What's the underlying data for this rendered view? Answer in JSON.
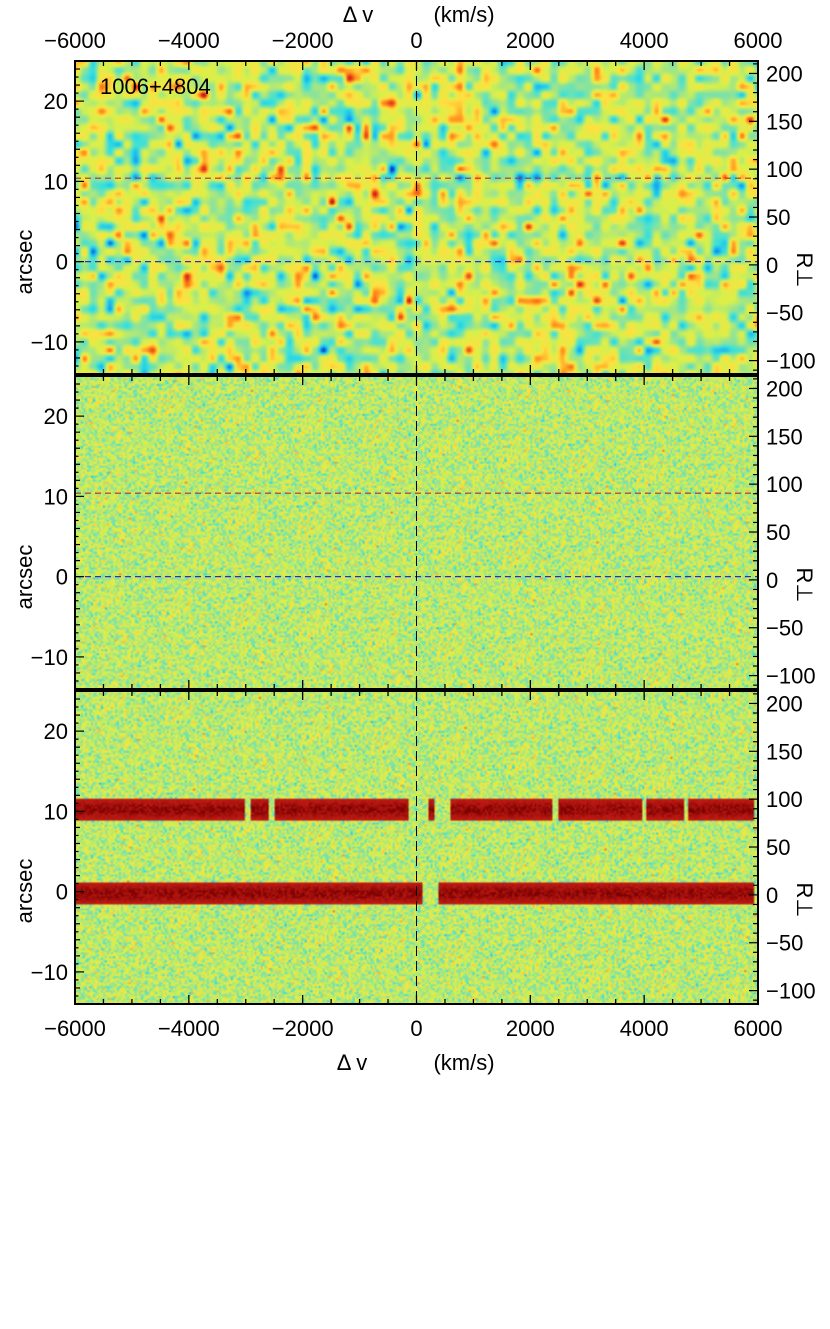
{
  "chart_data": {
    "type": "heatmap",
    "object_label": "1006+4804",
    "x_axis": {
      "label_left": "Δ v",
      "label_right": "(km/s)",
      "range": [
        -6000,
        6000
      ],
      "ticks": [
        -6000,
        -4000,
        -2000,
        0,
        2000,
        4000,
        6000
      ],
      "tick_labels": [
        "−6000",
        "−4000",
        "−2000",
        "0",
        "2000",
        "4000",
        "6000"
      ],
      "shown": [
        "top",
        "bottom"
      ]
    },
    "y_axis_left": {
      "label": "arcsec",
      "range": [
        -14,
        25
      ],
      "ticks": [
        -10,
        0,
        10,
        20
      ],
      "tick_labels": [
        "−10",
        "0",
        "10",
        "20"
      ]
    },
    "y_axis_right": {
      "label": "R⊥",
      "range": [
        -114,
        213
      ],
      "ticks": [
        -100,
        -50,
        0,
        50,
        100,
        150,
        200
      ],
      "tick_labels": [
        "−100",
        "−50",
        "0",
        "50",
        "100",
        "150",
        "200"
      ]
    },
    "colormap": "jet",
    "colormap_stops": [
      "#0033cc",
      "#1aa7ee",
      "#33e0e0",
      "#8fe39a",
      "#d9f04a",
      "#ffe040",
      "#ff8a1a",
      "#d8251c",
      "#7a0000"
    ],
    "reference_lines": {
      "x_dashed": 0,
      "y_dashed": [
        {
          "y": 10.4,
          "color": "#b03030"
        },
        {
          "y": 0,
          "color": "#3030c0"
        }
      ],
      "dash_line_color": "#000000"
    },
    "panels": [
      {
        "name": "smoothed",
        "pattern": "smoothed noise blobs",
        "reference_lines": true
      },
      {
        "name": "pixel-noise",
        "pattern": "pixel-level noise",
        "reference_lines": true
      },
      {
        "name": "pixel-noise-with-traces",
        "pattern": "pixel-level noise with bright traces",
        "reference_lines": false,
        "traces": [
          {
            "y": 10.3,
            "segments": [
              [
                -6000,
                5920
              ]
            ],
            "gaps": [
              [
                -3000,
                -2900
              ],
              [
                -2600,
                -2500
              ],
              [
                -150,
                200
              ],
              [
                310,
                600
              ],
              [
                2400,
                2480
              ],
              [
                3950,
                4050
              ],
              [
                4700,
                4760
              ]
            ]
          },
          {
            "y": 0,
            "segments": [
              [
                -6000,
                5920
              ]
            ],
            "gaps": [
              [
                100,
                380
              ]
            ]
          }
        ]
      }
    ]
  }
}
